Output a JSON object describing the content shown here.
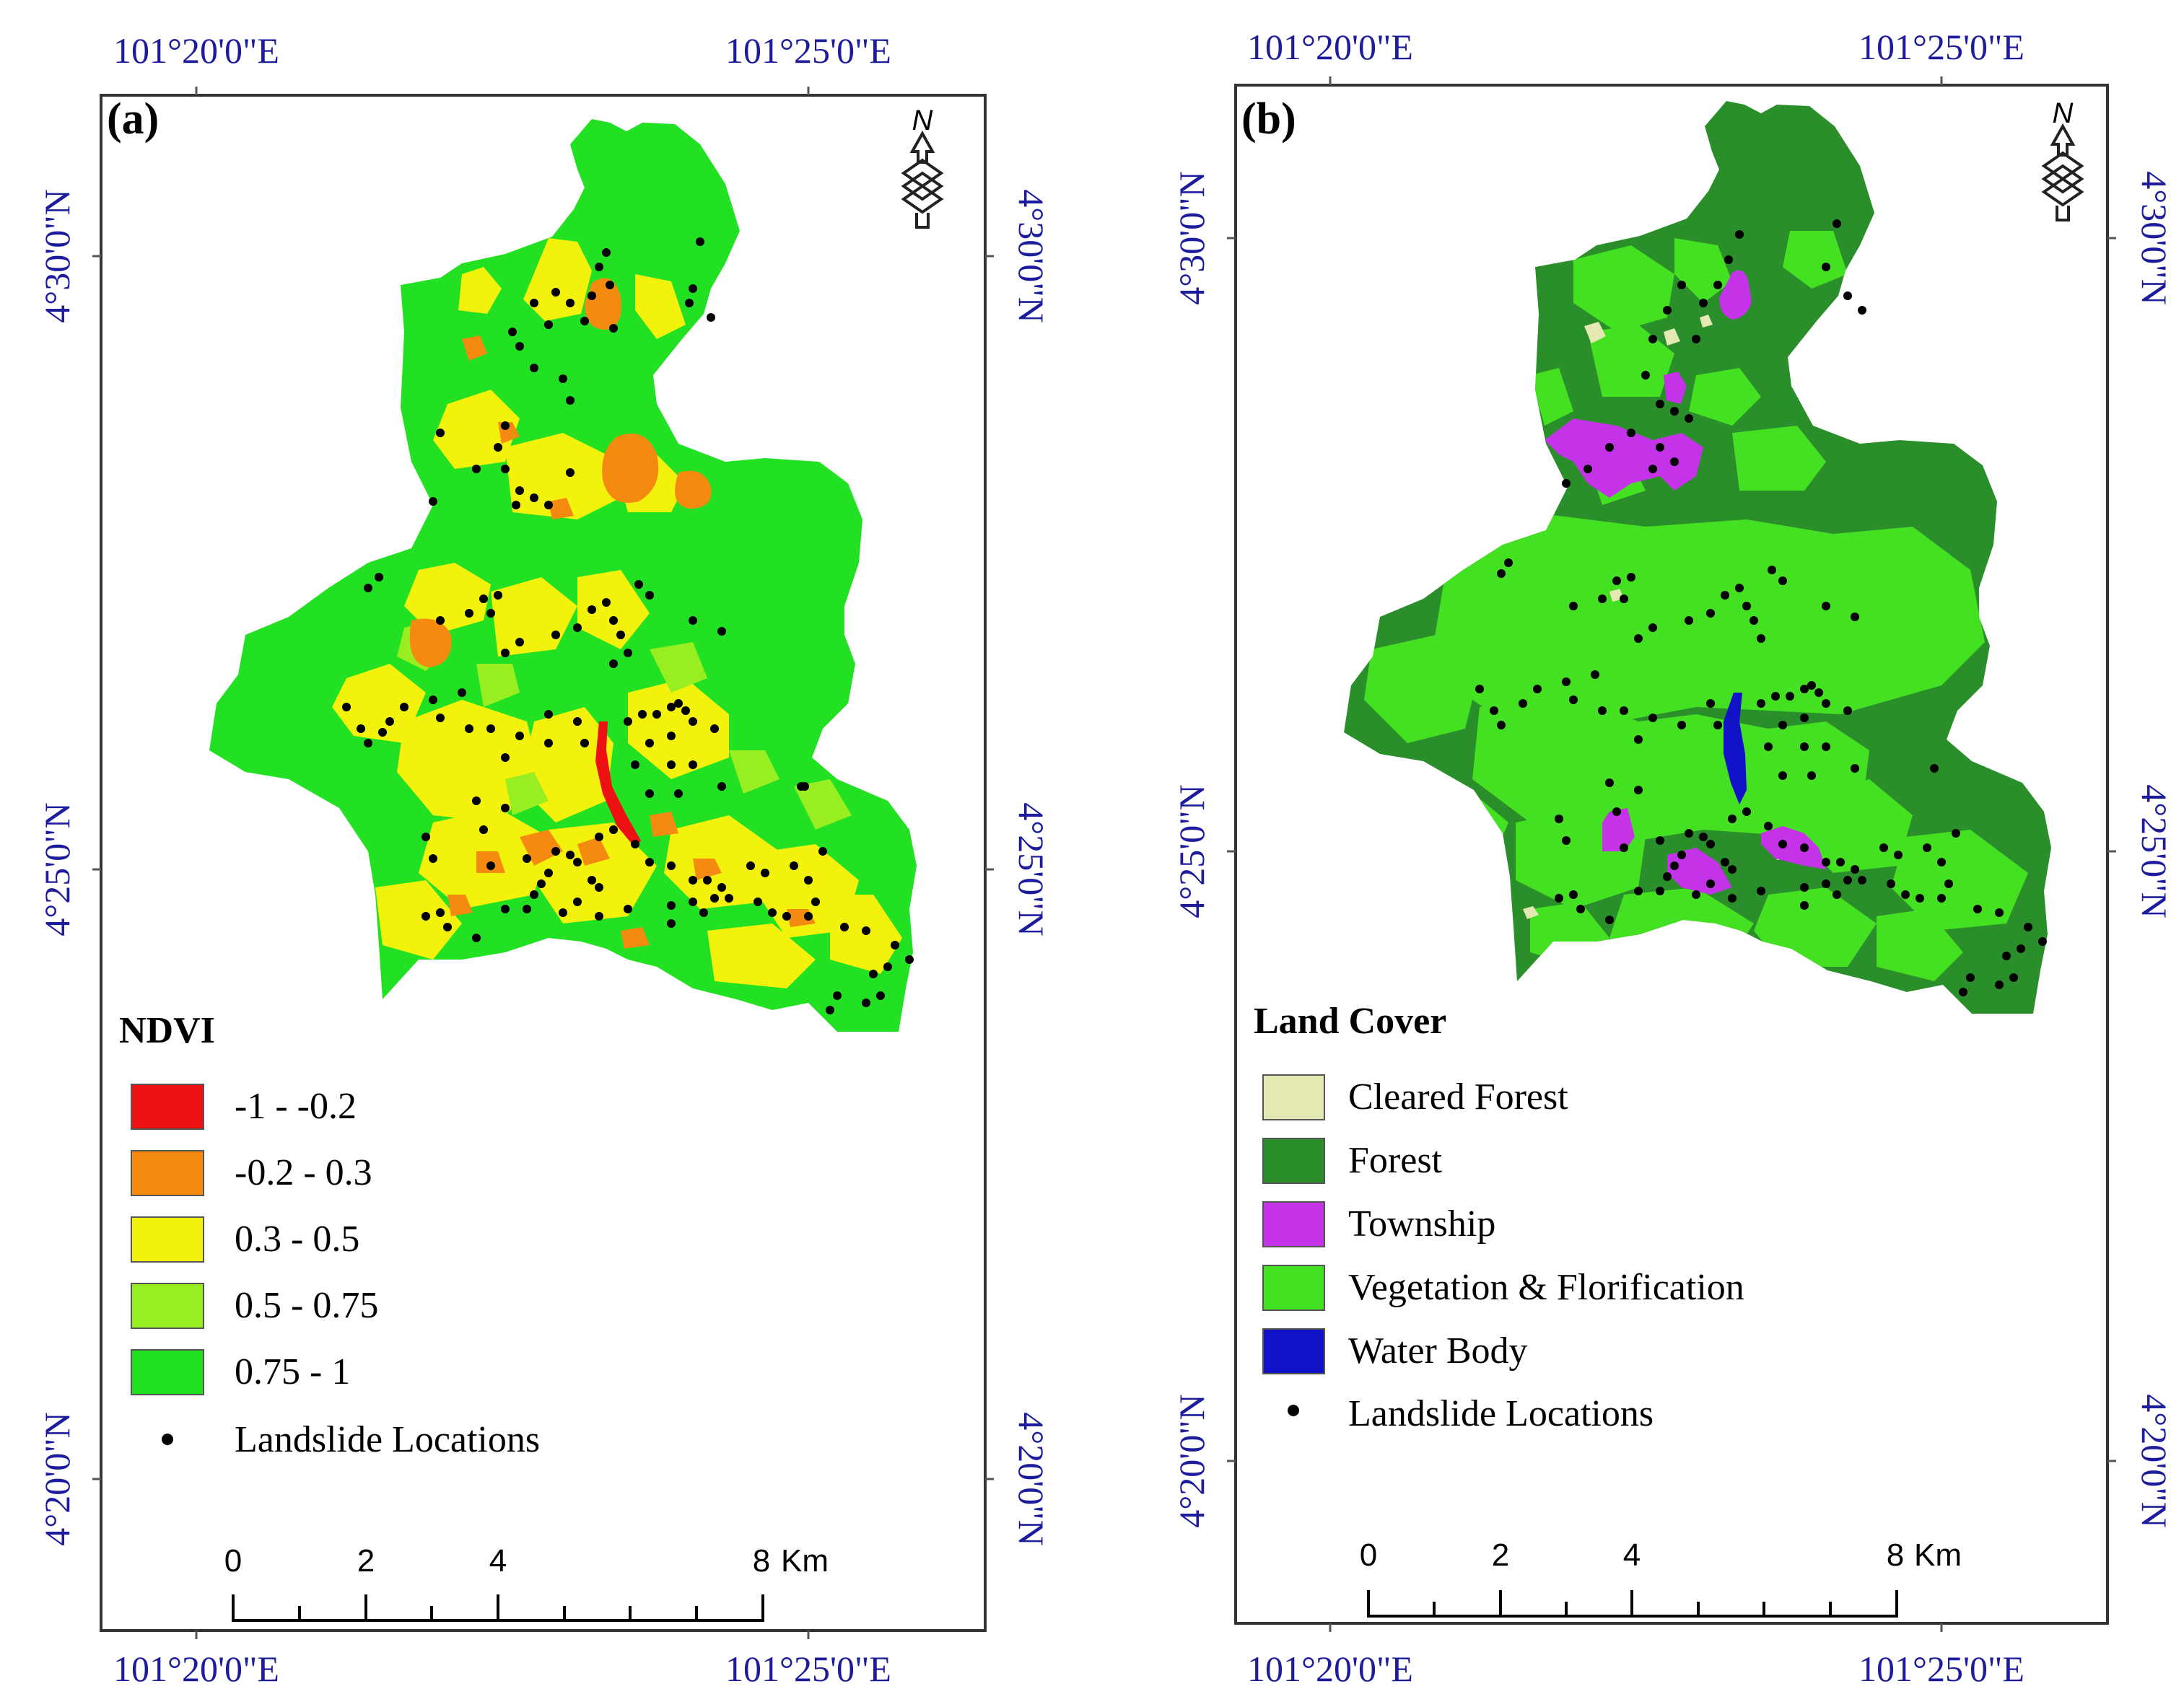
{
  "coords": {
    "lon_left": "101°20'0\"E",
    "lon_right": "101°25'0\"E",
    "lat_top": "4°30'0\"N",
    "lat_mid": "4°25'0\"N",
    "lat_bottom": "4°20'0\"N"
  },
  "north_label": "N",
  "panel_a": {
    "label": "(a)",
    "legend_title": "NDVI",
    "classes": [
      {
        "label": "-1 - -0.2",
        "color": "#ee1111"
      },
      {
        "label": "-0.2 - 0.3",
        "color": "#f58a11"
      },
      {
        "label": "0.3 - 0.5",
        "color": "#f2f20d"
      },
      {
        "label": "0.5 - 0.75",
        "color": "#99ee22"
      },
      {
        "label": "0.75 - 1",
        "color": "#22e022"
      }
    ],
    "landslide_label": "Landslide Locations"
  },
  "panel_b": {
    "label": "(b)",
    "legend_title": "Land Cover",
    "classes": [
      {
        "label": "Cleared Forest",
        "color": "#e4e9b4"
      },
      {
        "label": "Forest",
        "color": "#2a8f2a"
      },
      {
        "label": "Township",
        "color": "#c533e8"
      },
      {
        "label": "Vegetation & Florification",
        "color": "#44e022"
      },
      {
        "label": "Water Body",
        "color": "#1111c8"
      }
    ],
    "landslide_label": "Landslide Locations"
  },
  "scale_bar": {
    "ticks": [
      "0",
      "2",
      "4",
      "8"
    ],
    "unit": "Km"
  }
}
